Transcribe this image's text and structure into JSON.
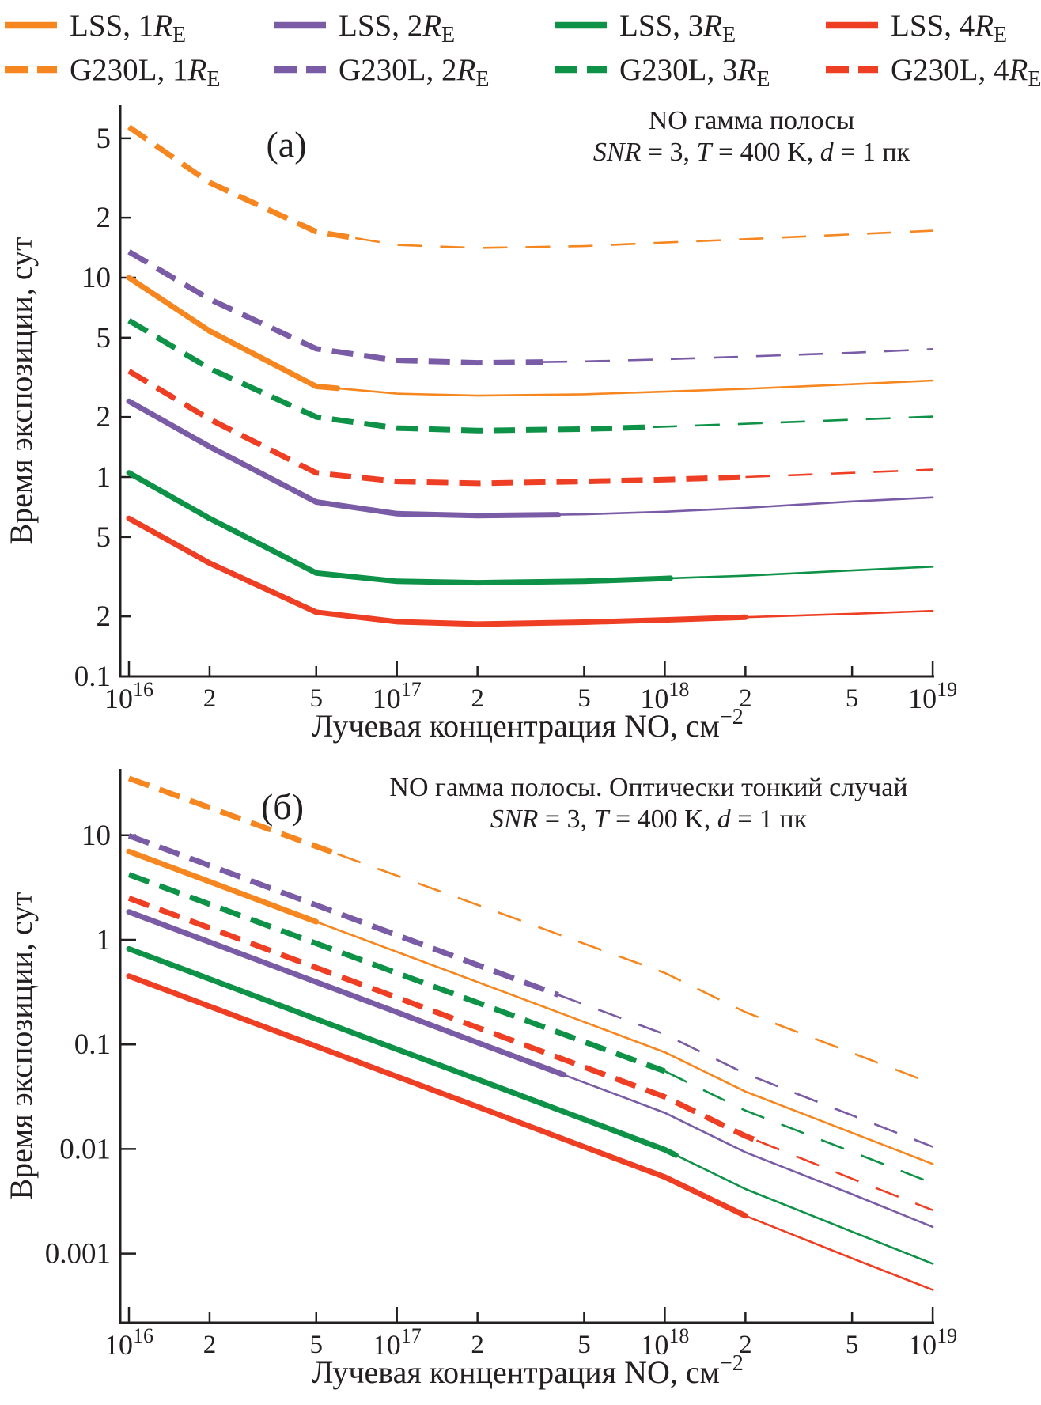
{
  "colors": {
    "axis": "#231F20",
    "orange": "#F6861F",
    "purple": "#7A5BA6",
    "green": "#0E9247",
    "red": "#EE3E23"
  },
  "legend": {
    "items": [
      {
        "key": "LSS_1RE",
        "prefix": "LSS, 1",
        "r": "R",
        "sub": "E",
        "color": "#F6861F",
        "dash": false
      },
      {
        "key": "LSS_2RE",
        "prefix": "LSS, 2",
        "r": "R",
        "sub": "E",
        "color": "#7A5BA6",
        "dash": false
      },
      {
        "key": "LSS_3RE",
        "prefix": "LSS, 3",
        "r": "R",
        "sub": "E",
        "color": "#0E9247",
        "dash": false
      },
      {
        "key": "LSS_4RE",
        "prefix": "LSS, 4",
        "r": "R",
        "sub": "E",
        "color": "#EE3E23",
        "dash": false
      },
      {
        "key": "G230L_1RE",
        "prefix": "G230L, 1",
        "r": "R",
        "sub": "E",
        "color": "#F6861F",
        "dash": true
      },
      {
        "key": "G230L_2RE",
        "prefix": "G230L, 2",
        "r": "R",
        "sub": "E",
        "color": "#7A5BA6",
        "dash": true
      },
      {
        "key": "G230L_3RE",
        "prefix": "G230L, 3",
        "r": "R",
        "sub": "E",
        "color": "#0E9247",
        "dash": true
      },
      {
        "key": "G230L_4RE",
        "prefix": "G230L, 4",
        "r": "R",
        "sub": "E",
        "color": "#EE3E23",
        "dash": true
      }
    ]
  },
  "chart_data": [
    {
      "type": "line",
      "key": "a",
      "panel": "(а)",
      "title": "NO гамма полосы",
      "subtitle": "SNR = 3, T = 400 K, d = 1 пк",
      "subtitle_segments": [
        {
          "t": "SNR",
          "i": true
        },
        {
          "t": " = 3, "
        },
        {
          "t": "T",
          "i": true
        },
        {
          "t": " = 400 K, "
        },
        {
          "t": "d",
          "i": true
        },
        {
          "t": " = 1 пк"
        }
      ],
      "xlabel": {
        "text": "Лучевая концентрация NO, см",
        "sup": "−2"
      },
      "ylabel": "Время экспозиции, сут",
      "xscale": "log",
      "yscale": "log",
      "xlim": [
        1e+16,
        1e+19
      ],
      "ylim": [
        0.1,
        73
      ],
      "grid": false,
      "legend_position": "top",
      "xticks": [
        {
          "v": 1e+16,
          "base": "10",
          "sup": "16"
        },
        {
          "v": 2e+16,
          "label": "2"
        },
        {
          "v": 5e+16,
          "label": "5"
        },
        {
          "v": 1e+17,
          "base": "10",
          "sup": "17"
        },
        {
          "v": 2e+17,
          "label": "2"
        },
        {
          "v": 5e+17,
          "label": "5"
        },
        {
          "v": 1e+18,
          "base": "10",
          "sup": "18"
        },
        {
          "v": 2e+18,
          "label": "2"
        },
        {
          "v": 5e+18,
          "label": "5"
        },
        {
          "v": 1e+19,
          "base": "10",
          "sup": "19"
        }
      ],
      "yticks": [
        {
          "v": 0.1,
          "label": "0.1",
          "major": true
        },
        {
          "v": 0.2,
          "label": "2"
        },
        {
          "v": 0.5,
          "label": "5"
        },
        {
          "v": 1,
          "label": "1",
          "major": true
        },
        {
          "v": 2,
          "label": "2"
        },
        {
          "v": 5,
          "label": "5"
        },
        {
          "v": 10,
          "label": "10",
          "major": true
        },
        {
          "v": 20,
          "label": "2"
        },
        {
          "v": 50,
          "label": "5"
        }
      ],
      "x": [
        1e+16,
        2e+16,
        5e+16,
        1e+17,
        2e+17,
        5e+17,
        1e+18,
        2e+18,
        5e+18,
        1e+19
      ],
      "series": [
        {
          "key": "LSS_1RE",
          "name": "LSS, 1RE",
          "color": "#F6861F",
          "dash": false,
          "thick_until": 6e+16,
          "values": [
            10,
            5.4,
            2.85,
            2.62,
            2.56,
            2.6,
            2.68,
            2.77,
            2.92,
            3.05
          ]
        },
        {
          "key": "G230L_1RE",
          "name": "G230L, 1RE",
          "color": "#F6861F",
          "dash": true,
          "thick_until": 7e+16,
          "values": [
            57,
            30,
            17.0,
            14.6,
            14.1,
            14.4,
            15.0,
            15.6,
            16.5,
            17.2
          ]
        },
        {
          "key": "LSS_2RE",
          "name": "LSS, 2RE",
          "color": "#7A5BA6",
          "dash": false,
          "thick_until": 4e+17,
          "values": [
            2.4,
            1.42,
            0.75,
            0.655,
            0.64,
            0.65,
            0.67,
            0.7,
            0.755,
            0.79
          ]
        },
        {
          "key": "G230L_2RE",
          "name": "G230L, 2RE",
          "color": "#7A5BA6",
          "dash": true,
          "thick_until": 3.5e+17,
          "values": [
            13.5,
            7.8,
            4.4,
            3.85,
            3.74,
            3.8,
            3.9,
            4.02,
            4.2,
            4.38
          ]
        },
        {
          "key": "LSS_3RE",
          "name": "LSS, 3RE",
          "color": "#0E9247",
          "dash": false,
          "thick_until": 1.05e+18,
          "values": [
            1.05,
            0.62,
            0.33,
            0.3,
            0.295,
            0.3,
            0.31,
            0.32,
            0.34,
            0.355
          ]
        },
        {
          "key": "G230L_3RE",
          "name": "G230L, 3RE",
          "color": "#0E9247",
          "dash": true,
          "thick_until": 9e+17,
          "values": [
            6.1,
            3.5,
            2.0,
            1.76,
            1.71,
            1.74,
            1.79,
            1.85,
            1.94,
            2.01
          ]
        },
        {
          "key": "LSS_4RE",
          "name": "LSS, 4RE",
          "color": "#EE3E23",
          "dash": false,
          "thick_until": 2e+18,
          "values": [
            0.62,
            0.37,
            0.21,
            0.188,
            0.183,
            0.187,
            0.192,
            0.198,
            0.206,
            0.213
          ]
        },
        {
          "key": "G230L_4RE",
          "name": "G230L, 4RE",
          "color": "#EE3E23",
          "dash": true,
          "thick_until": 2e+18,
          "values": [
            3.4,
            1.95,
            1.05,
            0.95,
            0.93,
            0.95,
            0.97,
            1.0,
            1.05,
            1.09
          ]
        }
      ]
    },
    {
      "type": "line",
      "key": "b",
      "panel": "(б)",
      "title": "NO гамма полосы. Оптически тонкий случай",
      "subtitle": "SNR = 3, T = 400 K, d = 1 пк",
      "subtitle_segments": [
        {
          "t": "SNR",
          "i": true
        },
        {
          "t": " = 3, "
        },
        {
          "t": "T",
          "i": true
        },
        {
          "t": " = 400 K, "
        },
        {
          "t": "d",
          "i": true
        },
        {
          "t": " = 1 пк"
        }
      ],
      "xlabel": {
        "text": "Лучевая концентрация NO, см",
        "sup": "−2"
      },
      "ylabel": "Время экспозиции, сут",
      "xscale": "log",
      "yscale": "log",
      "xlim": [
        1e+16,
        1e+19
      ],
      "ylim": [
        0.0002,
        43
      ],
      "grid": false,
      "legend_position": "top",
      "xticks": [
        {
          "v": 1e+16,
          "base": "10",
          "sup": "16"
        },
        {
          "v": 2e+16,
          "label": "2"
        },
        {
          "v": 5e+16,
          "label": "5"
        },
        {
          "v": 1e+17,
          "base": "10",
          "sup": "17"
        },
        {
          "v": 2e+17,
          "label": "2"
        },
        {
          "v": 5e+17,
          "label": "5"
        },
        {
          "v": 1e+18,
          "base": "10",
          "sup": "18"
        },
        {
          "v": 2e+18,
          "label": "2"
        },
        {
          "v": 5e+18,
          "label": "5"
        },
        {
          "v": 1e+19,
          "base": "10",
          "sup": "19"
        }
      ],
      "yticks": [
        {
          "v": 0.001,
          "label": "0.001",
          "major": true
        },
        {
          "v": 0.01,
          "label": "0.01",
          "major": true
        },
        {
          "v": 0.1,
          "label": "0.1",
          "major": true
        },
        {
          "v": 1,
          "label": "1",
          "major": true
        },
        {
          "v": 10,
          "label": "10",
          "major": true
        }
      ],
      "x": [
        1e+16,
        2e+16,
        5e+16,
        1e+17,
        2e+17,
        5e+17,
        1e+18,
        2e+18,
        5e+18,
        1e+19
      ],
      "series": [
        {
          "key": "LSS_1RE",
          "name": "LSS, 1RE",
          "color": "#F6861F",
          "dash": false,
          "thick_until": 5e+16,
          "values": [
            7.0,
            3.6,
            1.49,
            0.767,
            0.395,
            0.164,
            0.0842,
            0.0354,
            0.0143,
            0.0072
          ]
        },
        {
          "key": "G230L_1RE",
          "name": "G230L, 1RE",
          "color": "#F6861F",
          "dash": true,
          "thick_until": 6e+16,
          "values": [
            35,
            18.4,
            7.84,
            4.11,
            2.16,
            0.92,
            0.483,
            0.203,
            0.083,
            0.042
          ]
        },
        {
          "key": "LSS_2RE",
          "name": "LSS, 2RE",
          "color": "#7A5BA6",
          "dash": false,
          "thick_until": 4.2e+17,
          "values": [
            1.85,
            0.951,
            0.395,
            0.203,
            0.104,
            0.0433,
            0.0222,
            0.0093,
            0.0037,
            0.0018
          ]
        },
        {
          "key": "G230L_2RE",
          "name": "G230L, 2RE",
          "color": "#7A5BA6",
          "dash": true,
          "thick_until": 4e+17,
          "values": [
            9.9,
            5.13,
            2.15,
            1.11,
            0.575,
            0.241,
            0.125,
            0.0525,
            0.021,
            0.0105
          ]
        },
        {
          "key": "LSS_3RE",
          "name": "LSS, 3RE",
          "color": "#0E9247",
          "dash": false,
          "thick_until": 1.1e+18,
          "values": [
            0.82,
            0.422,
            0.175,
            0.0899,
            0.0463,
            0.0192,
            0.00985,
            0.00414,
            0.00162,
            0.0008
          ]
        },
        {
          "key": "G230L_3RE",
          "name": "G230L, 3RE",
          "color": "#0E9247",
          "dash": true,
          "thick_until": 1e+18,
          "values": [
            4.2,
            2.19,
            0.925,
            0.482,
            0.251,
            0.106,
            0.0554,
            0.0233,
            0.0094,
            0.0047
          ]
        },
        {
          "key": "LSS_4RE",
          "name": "LSS, 4RE",
          "color": "#EE3E23",
          "dash": false,
          "thick_until": 2e+18,
          "values": [
            0.45,
            0.231,
            0.096,
            0.0493,
            0.0254,
            0.0105,
            0.0054,
            0.0023,
            0.0009,
            0.00045
          ]
        },
        {
          "key": "G230L_4RE",
          "name": "G230L, 4RE",
          "color": "#EE3E23",
          "dash": true,
          "thick_until": 2.2e+18,
          "values": [
            2.5,
            1.3,
            0.542,
            0.281,
            0.145,
            0.0608,
            0.0315,
            0.0133,
            0.0052,
            0.0026
          ]
        }
      ]
    }
  ]
}
